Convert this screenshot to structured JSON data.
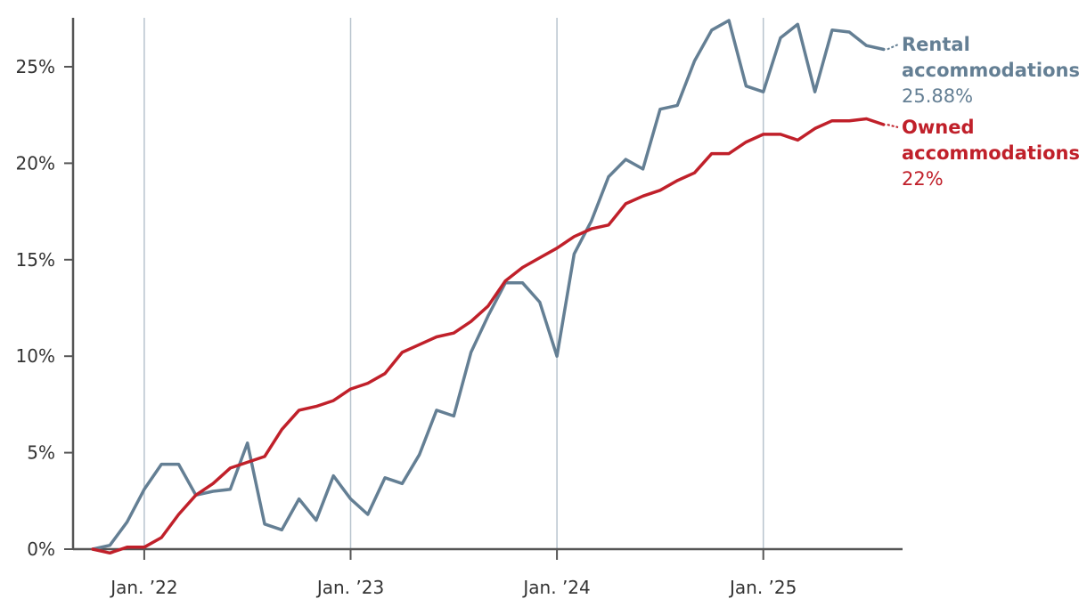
{
  "chart_data": {
    "type": "line",
    "x_start": "2021-10",
    "x_step": "month",
    "ylim": [
      0,
      27
    ],
    "y_ticks": [
      0,
      5,
      10,
      15,
      20,
      25
    ],
    "y_tick_labels": [
      "0%",
      "5%",
      "10%",
      "15%",
      "20%",
      "25%"
    ],
    "x_ticks": [
      "2022-01",
      "2023-01",
      "2024-01",
      "2025-01"
    ],
    "x_tick_labels": [
      "Jan. ’22",
      "Jan. ’23",
      "Jan. ’24",
      "Jan. ’25"
    ],
    "grid": "vertical at x ticks",
    "series": [
      {
        "name": "Rental accommodations",
        "label_line1": "Rental",
        "label_line2": "accommodations",
        "value_label": "25.88%",
        "color": "#647f94",
        "values": [
          0,
          0.2,
          1.4,
          3.1,
          4.4,
          4.4,
          2.8,
          3.0,
          3.1,
          5.5,
          1.3,
          1.0,
          2.6,
          1.5,
          3.8,
          2.6,
          1.8,
          3.7,
          3.4,
          4.9,
          7.2,
          6.9,
          10.2,
          12.1,
          13.8,
          13.8,
          12.8,
          10.0,
          15.3,
          17.0,
          19.3,
          20.2,
          19.7,
          22.8,
          23.0,
          25.3,
          26.9,
          27.4,
          24.0,
          23.7,
          26.5,
          27.2,
          23.7,
          26.9,
          26.8,
          26.1,
          25.9
        ]
      },
      {
        "name": "Owned accommodations",
        "label_line1": "Owned",
        "label_line2": "accommodations",
        "value_label": "22%",
        "color": "#c0202a",
        "values": [
          0,
          -0.2,
          0.1,
          0.1,
          0.6,
          1.8,
          2.8,
          3.4,
          4.2,
          4.5,
          4.8,
          6.2,
          7.2,
          7.4,
          7.7,
          8.3,
          8.6,
          9.1,
          10.2,
          10.6,
          11.0,
          11.2,
          11.8,
          12.6,
          13.9,
          14.6,
          15.1,
          15.6,
          16.2,
          16.6,
          16.8,
          17.9,
          18.3,
          18.6,
          19.1,
          19.5,
          20.5,
          20.5,
          21.1,
          21.5,
          21.5,
          21.2,
          21.8,
          22.2,
          22.2,
          22.3,
          22.0
        ]
      }
    ]
  }
}
